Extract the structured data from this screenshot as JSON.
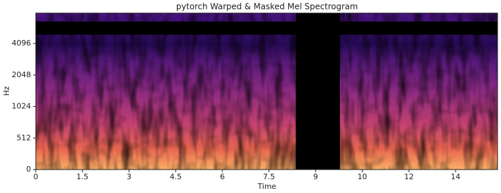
{
  "chart_data": {
    "type": "spectrogram",
    "title": "pytorch Warped & Masked Mel Spectrogram",
    "xlabel": "Time",
    "ylabel": "Hz",
    "xlim": [
      0,
      14.85
    ],
    "xticks": [
      0,
      1.5,
      3,
      4.5,
      6,
      7.5,
      9,
      {
        "value": 10.5,
        "label": "10"
      },
      12,
      {
        "value": 13.5,
        "label": "14"
      }
    ],
    "ylim": [
      0,
      8000
    ],
    "yticks": [
      0,
      512,
      1024,
      2048,
      4096
    ],
    "yscale": "symlog",
    "ylinthresh": 512,
    "time_mask": [
      8.36,
      9.78
    ],
    "freq_mask": [
      4970,
      6650
    ],
    "mask_color": "#000000"
  }
}
